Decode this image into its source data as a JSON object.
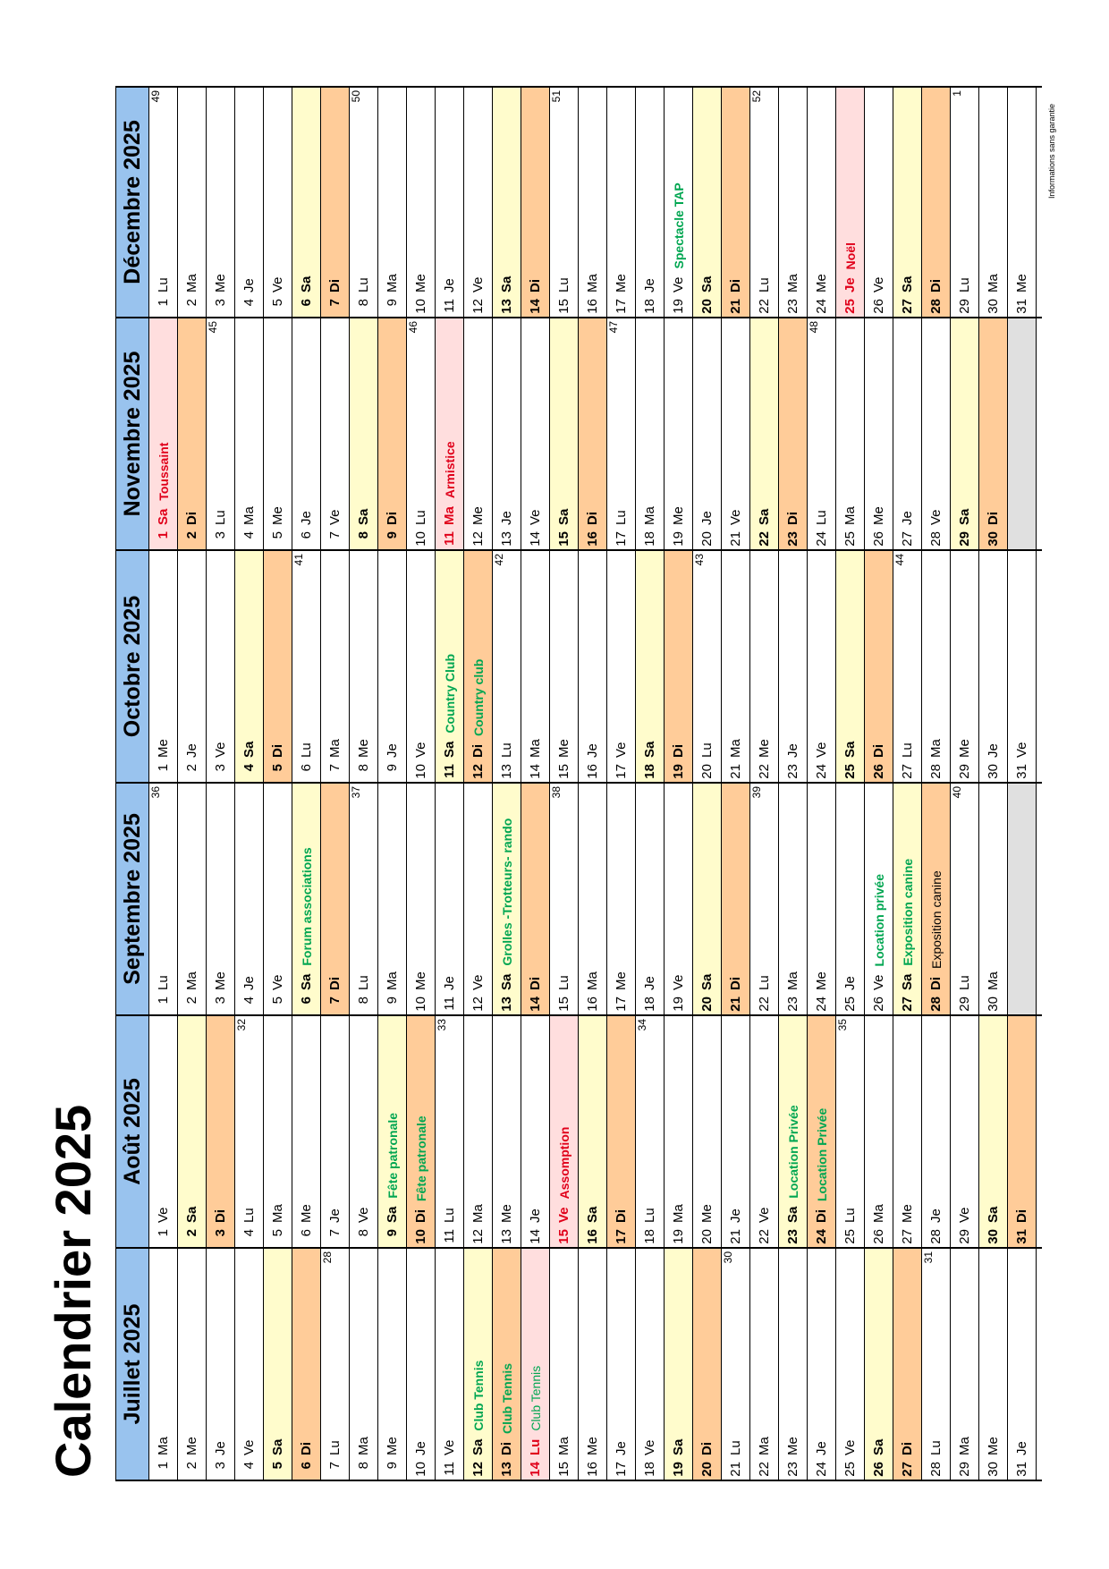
{
  "title": "Calendrier 2025",
  "footnote": "Informations sans garantie",
  "months": [
    {
      "name": "Juillet 2025",
      "days": [
        {
          "n": "1",
          "d": "Ma"
        },
        {
          "n": "2",
          "d": "Me"
        },
        {
          "n": "3",
          "d": "Je"
        },
        {
          "n": "4",
          "d": "Ve"
        },
        {
          "n": "5",
          "d": "Sa",
          "t": "sat"
        },
        {
          "n": "6",
          "d": "Di",
          "t": "sun"
        },
        {
          "n": "7",
          "d": "Lu",
          "w": "28"
        },
        {
          "n": "8",
          "d": "Ma"
        },
        {
          "n": "9",
          "d": "Me"
        },
        {
          "n": "10",
          "d": "Je"
        },
        {
          "n": "11",
          "d": "Ve"
        },
        {
          "n": "12",
          "d": "Sa",
          "t": "sat",
          "e": "Club Tennis",
          "ec": "green"
        },
        {
          "n": "13",
          "d": "Di",
          "t": "sun",
          "e": "Club Tennis",
          "ec": "green"
        },
        {
          "n": "14",
          "d": "Lu",
          "t": "hol",
          "e": "Club Tennis",
          "ec": "green-light"
        },
        {
          "n": "15",
          "d": "Ma"
        },
        {
          "n": "16",
          "d": "Me"
        },
        {
          "n": "17",
          "d": "Je"
        },
        {
          "n": "18",
          "d": "Ve"
        },
        {
          "n": "19",
          "d": "Sa",
          "t": "sat"
        },
        {
          "n": "20",
          "d": "Di",
          "t": "sun"
        },
        {
          "n": "21",
          "d": "Lu",
          "w": "30"
        },
        {
          "n": "22",
          "d": "Ma"
        },
        {
          "n": "23",
          "d": "Me"
        },
        {
          "n": "24",
          "d": "Je"
        },
        {
          "n": "25",
          "d": "Ve"
        },
        {
          "n": "26",
          "d": "Sa",
          "t": "sat"
        },
        {
          "n": "27",
          "d": "Di",
          "t": "sun"
        },
        {
          "n": "28",
          "d": "Lu",
          "w": "31"
        },
        {
          "n": "29",
          "d": "Ma"
        },
        {
          "n": "30",
          "d": "Me"
        },
        {
          "n": "31",
          "d": "Je"
        }
      ]
    },
    {
      "name": "Août 2025",
      "days": [
        {
          "n": "1",
          "d": "Ve"
        },
        {
          "n": "2",
          "d": "Sa",
          "t": "sat"
        },
        {
          "n": "3",
          "d": "Di",
          "t": "sun"
        },
        {
          "n": "4",
          "d": "Lu",
          "w": "32"
        },
        {
          "n": "5",
          "d": "Ma"
        },
        {
          "n": "6",
          "d": "Me"
        },
        {
          "n": "7",
          "d": "Je"
        },
        {
          "n": "8",
          "d": "Ve"
        },
        {
          "n": "9",
          "d": "Sa",
          "t": "sat",
          "e": "Fête patronale",
          "ec": "green"
        },
        {
          "n": "10",
          "d": "Di",
          "t": "sun",
          "e": "Fête patronale",
          "ec": "green"
        },
        {
          "n": "11",
          "d": "Lu",
          "w": "33"
        },
        {
          "n": "12",
          "d": "Ma"
        },
        {
          "n": "13",
          "d": "Me"
        },
        {
          "n": "14",
          "d": "Je"
        },
        {
          "n": "15",
          "d": "Ve",
          "t": "hol",
          "e": "Assomption",
          "ec": "red"
        },
        {
          "n": "16",
          "d": "Sa",
          "t": "sat"
        },
        {
          "n": "17",
          "d": "Di",
          "t": "sun"
        },
        {
          "n": "18",
          "d": "Lu",
          "w": "34"
        },
        {
          "n": "19",
          "d": "Ma"
        },
        {
          "n": "20",
          "d": "Me"
        },
        {
          "n": "21",
          "d": "Je"
        },
        {
          "n": "22",
          "d": "Ve"
        },
        {
          "n": "23",
          "d": "Sa",
          "t": "sat",
          "e": "Location Privée",
          "ec": "green"
        },
        {
          "n": "24",
          "d": "Di",
          "t": "sun",
          "e": "Location Privée",
          "ec": "green"
        },
        {
          "n": "25",
          "d": "Lu",
          "w": "35"
        },
        {
          "n": "26",
          "d": "Ma"
        },
        {
          "n": "27",
          "d": "Me"
        },
        {
          "n": "28",
          "d": "Je"
        },
        {
          "n": "29",
          "d": "Ve"
        },
        {
          "n": "30",
          "d": "Sa",
          "t": "sat"
        },
        {
          "n": "31",
          "d": "Di",
          "t": "sun"
        }
      ]
    },
    {
      "name": "Septembre 2025",
      "days": [
        {
          "n": "1",
          "d": "Lu",
          "w": "36"
        },
        {
          "n": "2",
          "d": "Ma"
        },
        {
          "n": "3",
          "d": "Me"
        },
        {
          "n": "4",
          "d": "Je"
        },
        {
          "n": "5",
          "d": "Ve"
        },
        {
          "n": "6",
          "d": "Sa",
          "t": "sat",
          "e": "Forum associations",
          "ec": "green"
        },
        {
          "n": "7",
          "d": "Di",
          "t": "sun"
        },
        {
          "n": "8",
          "d": "Lu",
          "w": "37"
        },
        {
          "n": "9",
          "d": "Ma"
        },
        {
          "n": "10",
          "d": "Me"
        },
        {
          "n": "11",
          "d": "Je"
        },
        {
          "n": "12",
          "d": "Ve"
        },
        {
          "n": "13",
          "d": "Sa",
          "t": "sat",
          "e": "Grolles -Trotteurs- rando",
          "ec": "green"
        },
        {
          "n": "14",
          "d": "Di",
          "t": "sun"
        },
        {
          "n": "15",
          "d": "Lu",
          "w": "38"
        },
        {
          "n": "16",
          "d": "Ma"
        },
        {
          "n": "17",
          "d": "Me"
        },
        {
          "n": "18",
          "d": "Je"
        },
        {
          "n": "19",
          "d": "Ve"
        },
        {
          "n": "20",
          "d": "Sa",
          "t": "sat"
        },
        {
          "n": "21",
          "d": "Di",
          "t": "sun"
        },
        {
          "n": "22",
          "d": "Lu",
          "w": "39"
        },
        {
          "n": "23",
          "d": "Ma"
        },
        {
          "n": "24",
          "d": "Me"
        },
        {
          "n": "25",
          "d": "Je"
        },
        {
          "n": "26",
          "d": "Ve",
          "e": "Location privée",
          "ec": "green"
        },
        {
          "n": "27",
          "d": "Sa",
          "t": "sat",
          "e": "Exposition canine",
          "ec": "green"
        },
        {
          "n": "28",
          "d": "Di",
          "t": "sun",
          "e": "Exposition canine",
          "ec": "black"
        },
        {
          "n": "29",
          "d": "Lu",
          "w": "40"
        },
        {
          "n": "30",
          "d": "Ma"
        },
        {
          "n": "",
          "d": "",
          "t": "empty"
        }
      ]
    },
    {
      "name": "Octobre 2025",
      "days": [
        {
          "n": "1",
          "d": "Me"
        },
        {
          "n": "2",
          "d": "Je"
        },
        {
          "n": "3",
          "d": "Ve"
        },
        {
          "n": "4",
          "d": "Sa",
          "t": "sat"
        },
        {
          "n": "5",
          "d": "Di",
          "t": "sun"
        },
        {
          "n": "6",
          "d": "Lu",
          "w": "41"
        },
        {
          "n": "7",
          "d": "Ma"
        },
        {
          "n": "8",
          "d": "Me"
        },
        {
          "n": "9",
          "d": "Je"
        },
        {
          "n": "10",
          "d": "Ve"
        },
        {
          "n": "11",
          "d": "Sa",
          "t": "sat",
          "e": "Country Club",
          "ec": "green"
        },
        {
          "n": "12",
          "d": "Di",
          "t": "sun",
          "e": "Country club",
          "ec": "green"
        },
        {
          "n": "13",
          "d": "Lu",
          "w": "42"
        },
        {
          "n": "14",
          "d": "Ma"
        },
        {
          "n": "15",
          "d": "Me"
        },
        {
          "n": "16",
          "d": "Je"
        },
        {
          "n": "17",
          "d": "Ve"
        },
        {
          "n": "18",
          "d": "Sa",
          "t": "sat"
        },
        {
          "n": "19",
          "d": "Di",
          "t": "sun"
        },
        {
          "n": "20",
          "d": "Lu",
          "w": "43"
        },
        {
          "n": "21",
          "d": "Ma"
        },
        {
          "n": "22",
          "d": "Me"
        },
        {
          "n": "23",
          "d": "Je"
        },
        {
          "n": "24",
          "d": "Ve"
        },
        {
          "n": "25",
          "d": "Sa",
          "t": "sat"
        },
        {
          "n": "26",
          "d": "Di",
          "t": "sun"
        },
        {
          "n": "27",
          "d": "Lu",
          "w": "44"
        },
        {
          "n": "28",
          "d": "Ma"
        },
        {
          "n": "29",
          "d": "Me"
        },
        {
          "n": "30",
          "d": "Je"
        },
        {
          "n": "31",
          "d": "Ve"
        }
      ]
    },
    {
      "name": "Novembre 2025",
      "days": [
        {
          "n": "1",
          "d": "Sa",
          "t": "hol",
          "e": "Toussaint",
          "ec": "red"
        },
        {
          "n": "2",
          "d": "Di",
          "t": "sun"
        },
        {
          "n": "3",
          "d": "Lu",
          "w": "45"
        },
        {
          "n": "4",
          "d": "Ma"
        },
        {
          "n": "5",
          "d": "Me"
        },
        {
          "n": "6",
          "d": "Je"
        },
        {
          "n": "7",
          "d": "Ve"
        },
        {
          "n": "8",
          "d": "Sa",
          "t": "sat"
        },
        {
          "n": "9",
          "d": "Di",
          "t": "sun"
        },
        {
          "n": "10",
          "d": "Lu",
          "w": "46"
        },
        {
          "n": "11",
          "d": "Ma",
          "t": "hol",
          "e": "Armistice",
          "ec": "red"
        },
        {
          "n": "12",
          "d": "Me"
        },
        {
          "n": "13",
          "d": "Je"
        },
        {
          "n": "14",
          "d": "Ve"
        },
        {
          "n": "15",
          "d": "Sa",
          "t": "sat"
        },
        {
          "n": "16",
          "d": "Di",
          "t": "sun"
        },
        {
          "n": "17",
          "d": "Lu",
          "w": "47"
        },
        {
          "n": "18",
          "d": "Ma"
        },
        {
          "n": "19",
          "d": "Me"
        },
        {
          "n": "20",
          "d": "Je"
        },
        {
          "n": "21",
          "d": "Ve"
        },
        {
          "n": "22",
          "d": "Sa",
          "t": "sat"
        },
        {
          "n": "23",
          "d": "Di",
          "t": "sun"
        },
        {
          "n": "24",
          "d": "Lu",
          "w": "48"
        },
        {
          "n": "25",
          "d": "Ma"
        },
        {
          "n": "26",
          "d": "Me"
        },
        {
          "n": "27",
          "d": "Je"
        },
        {
          "n": "28",
          "d": "Ve"
        },
        {
          "n": "29",
          "d": "Sa",
          "t": "sat"
        },
        {
          "n": "30",
          "d": "Di",
          "t": "sun"
        },
        {
          "n": "",
          "d": "",
          "t": "empty"
        }
      ]
    },
    {
      "name": "Décembre 2025",
      "days": [
        {
          "n": "1",
          "d": "Lu",
          "w": "49"
        },
        {
          "n": "2",
          "d": "Ma"
        },
        {
          "n": "3",
          "d": "Me"
        },
        {
          "n": "4",
          "d": "Je"
        },
        {
          "n": "5",
          "d": "Ve"
        },
        {
          "n": "6",
          "d": "Sa",
          "t": "sat"
        },
        {
          "n": "7",
          "d": "Di",
          "t": "sun"
        },
        {
          "n": "8",
          "d": "Lu",
          "w": "50"
        },
        {
          "n": "9",
          "d": "Ma"
        },
        {
          "n": "10",
          "d": "Me"
        },
        {
          "n": "11",
          "d": "Je"
        },
        {
          "n": "12",
          "d": "Ve"
        },
        {
          "n": "13",
          "d": "Sa",
          "t": "sat"
        },
        {
          "n": "14",
          "d": "Di",
          "t": "sun"
        },
        {
          "n": "15",
          "d": "Lu",
          "w": "51"
        },
        {
          "n": "16",
          "d": "Ma"
        },
        {
          "n": "17",
          "d": "Me"
        },
        {
          "n": "18",
          "d": "Je"
        },
        {
          "n": "19",
          "d": "Ve",
          "e": "Spectacle TAP",
          "ec": "green"
        },
        {
          "n": "20",
          "d": "Sa",
          "t": "sat"
        },
        {
          "n": "21",
          "d": "Di",
          "t": "sun"
        },
        {
          "n": "22",
          "d": "Lu",
          "w": "52"
        },
        {
          "n": "23",
          "d": "Ma"
        },
        {
          "n": "24",
          "d": "Me"
        },
        {
          "n": "25",
          "d": "Je",
          "t": "hol",
          "e": "Noël",
          "ec": "red"
        },
        {
          "n": "26",
          "d": "Ve"
        },
        {
          "n": "27",
          "d": "Sa",
          "t": "sat"
        },
        {
          "n": "28",
          "d": "Di",
          "t": "sun"
        },
        {
          "n": "29",
          "d": "Lu",
          "w": "1"
        },
        {
          "n": "30",
          "d": "Ma"
        },
        {
          "n": "31",
          "d": "Me"
        }
      ]
    }
  ]
}
